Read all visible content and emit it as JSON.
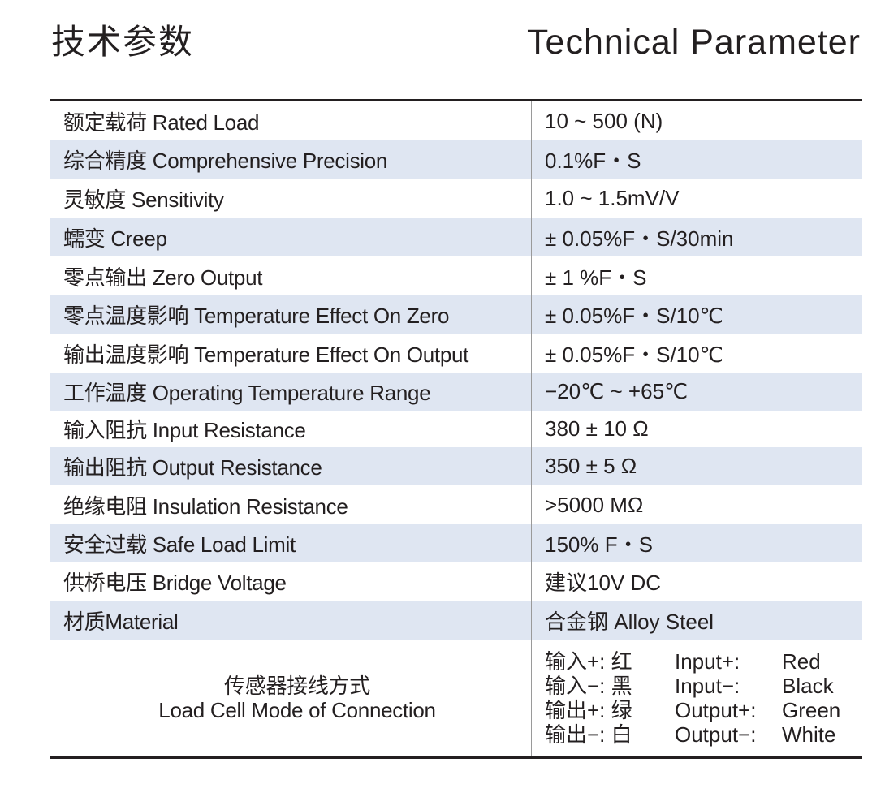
{
  "header": {
    "title_cn": "技术参数",
    "title_en": "Technical Parameter"
  },
  "rows": [
    {
      "label": "额定载荷 Rated Load",
      "value": "10 ~ 500 (N)"
    },
    {
      "label": "综合精度 Comprehensive Precision",
      "value": "0.1%F・S"
    },
    {
      "label": "灵敏度 Sensitivity",
      "value": "1.0 ~ 1.5mV/V"
    },
    {
      "label": "蠕变 Creep",
      "value": "± 0.05%F・S/30min"
    },
    {
      "label": "零点输出 Zero Output",
      "value": "± 1 %F・S"
    },
    {
      "label": "零点温度影响 Temperature Effect On Zero",
      "value": "± 0.05%F・S/10℃"
    },
    {
      "label": "输出温度影响 Temperature Effect On Output",
      "value": "± 0.05%F・S/10℃"
    },
    {
      "label": "工作温度 Operating Temperature Range",
      "value": "−20℃ ~ +65℃"
    },
    {
      "label": "输入阻抗 Input Resistance",
      "value": "380 ± 10 Ω"
    },
    {
      "label": "输出阻抗 Output Resistance",
      "value": "350 ± 5 Ω"
    },
    {
      "label": "绝缘电阻 Insulation Resistance",
      "value": ">5000 MΩ"
    },
    {
      "label": "安全过载 Safe Load Limit",
      "value": "150% F・S"
    },
    {
      "label": "供桥电压 Bridge Voltage",
      "value": "建议10V DC"
    },
    {
      "label": "材质Material",
      "value": "合金钢 Alloy Steel"
    }
  ],
  "connection": {
    "label_cn": "传感器接线方式",
    "label_en": "Load Cell Mode of Connection",
    "wires": [
      {
        "cn": "输入+:  红",
        "en": "Input+:",
        "color": "Red"
      },
      {
        "cn": "输入−:  黑",
        "en": "Input−:",
        "color": "Black"
      },
      {
        "cn": "输出+:  绿",
        "en": "Output+:",
        "color": "Green"
      },
      {
        "cn": "输出−:  白",
        "en": "Output−:",
        "color": "White"
      }
    ]
  },
  "colors": {
    "shaded_row": "#dfe6f2",
    "text": "#231f20"
  }
}
